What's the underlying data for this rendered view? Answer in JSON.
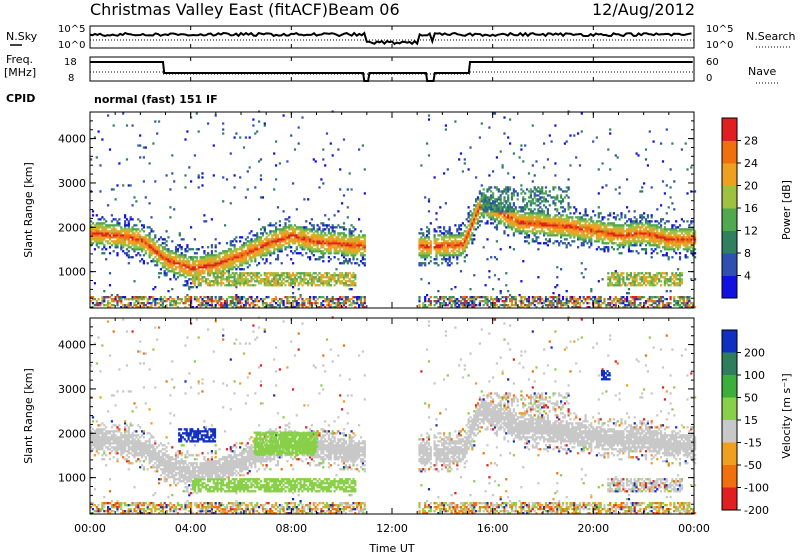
{
  "header": {
    "station": "Christmas Valley East (fitACF)",
    "beam": "Beam 06",
    "date": "12/Aug/2012"
  },
  "summary_panels": {
    "nsky_label": "N.Sky",
    "nsearch_label": "N.Search",
    "freq_label_line1": "Freq.",
    "freq_label_line2": "[MHz]",
    "nave_label": "Nave",
    "cpid_label": "CPID",
    "cpid_value": "normal (fast) 151 IF",
    "noise_ticks_left": [
      "10^5",
      "10^0"
    ],
    "noise_ticks_right": [
      "10^5",
      "10^0"
    ],
    "freq_ticks": [
      "18",
      "8"
    ],
    "nave_ticks": [
      "60",
      "0"
    ]
  },
  "axes": {
    "xlabel": "Time UT",
    "x_ticks": [
      "00:00",
      "04:00",
      "08:00",
      "12:00",
      "16:00",
      "20:00",
      "00:00"
    ],
    "ylabel": "Slant Range [km]",
    "y_ticks": [
      "1000",
      "2000",
      "3000",
      "4000"
    ]
  },
  "power_colorbar": {
    "label": "Power [dB]",
    "ticks": [
      "4",
      "8",
      "12",
      "16",
      "20",
      "24",
      "28"
    ],
    "colors": [
      "#1010e0",
      "#3050b0",
      "#308060",
      "#50a850",
      "#a0c040",
      "#f0a020",
      "#f07010",
      "#e02020"
    ]
  },
  "velocity_colorbar": {
    "label": "Velocity [m s⁻¹]",
    "ticks": [
      "200",
      "100",
      "50",
      "15",
      "-15",
      "-50",
      "-100",
      "-200"
    ],
    "colors": [
      "#1030c0",
      "#2e7e5e",
      "#3cae3c",
      "#88d048",
      "#c8c8c8",
      "#f0a020",
      "#f07010",
      "#e02020"
    ]
  },
  "chart_data": {
    "type": "heatmap",
    "title": "Christmas Valley East (fitACF) Beam 06 12/Aug/2012",
    "xlabel": "Time UT",
    "ylabel": "Slant Range [km]",
    "xlim": [
      0,
      24
    ],
    "ylim": [
      180,
      4600
    ],
    "series": [
      {
        "name": "Power [dB]",
        "band_center_km": [
          [
            0,
            1850
          ],
          [
            1,
            1800
          ],
          [
            2,
            1700
          ],
          [
            3,
            1250
          ],
          [
            4,
            1050
          ],
          [
            5,
            1150
          ],
          [
            6,
            1350
          ],
          [
            7,
            1600
          ],
          [
            8,
            1800
          ],
          [
            9,
            1650
          ],
          [
            10,
            1600
          ],
          [
            11,
            1550
          ],
          [
            13.7,
            1550
          ],
          [
            14.8,
            1600
          ],
          [
            15.5,
            2500
          ],
          [
            16,
            2400
          ],
          [
            17,
            2100
          ],
          [
            18,
            2050
          ],
          [
            19,
            2000
          ],
          [
            20,
            1900
          ],
          [
            21,
            1800
          ],
          [
            22,
            1850
          ],
          [
            23,
            1700
          ],
          [
            24,
            1700
          ]
        ],
        "peak_power_dB": 28
      },
      {
        "name": "Velocity [m s-1]",
        "features": [
          {
            "time_h": [
              3.5,
              5.0
            ],
            "range_km": [
              1800,
              2100
            ],
            "velocity": 200
          },
          {
            "time_h": [
              6.5,
              9.0
            ],
            "range_km": [
              1500,
              2000
            ],
            "velocity": 50
          },
          {
            "time_h": [
              20.3,
              20.6
            ],
            "range_km": [
              3200,
              3400
            ],
            "velocity": 200
          },
          {
            "time_h": [
              0,
              24
            ],
            "range_km": [
              1500,
              2200
            ],
            "velocity": 0
          }
        ]
      }
    ],
    "data_gaps_h": [
      [
        10.9,
        11.0
      ],
      [
        13.5,
        13.6
      ],
      [
        11.0,
        13.0
      ]
    ]
  }
}
